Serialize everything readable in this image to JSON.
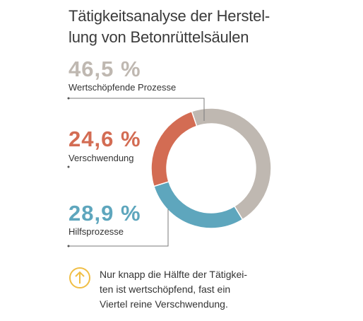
{
  "title_lines": [
    "Tätigkeitsanalyse der Herstel-",
    "lung von Betonrüttelsäulen"
  ],
  "chart_data": {
    "type": "pie",
    "style": "donut",
    "slices": [
      {
        "label": "Wertschöpfende Prozesse",
        "value": 46.5,
        "display": "46,5 %",
        "color": "#bfb8b1"
      },
      {
        "label": "Verschwendung",
        "value": 24.6,
        "display": "24,6 %",
        "color": "#d36c53"
      },
      {
        "label": "Hilfsprozesse",
        "value": 28.9,
        "display": "28,9 %",
        "color": "#5ea6bd"
      }
    ]
  },
  "note": {
    "icon": "arrow-up-circle-icon",
    "icon_color": "#f0be45",
    "lines": [
      "Nur knapp die Hälfte der Tätigkei-",
      "ten ist wertschöpfend, fast ein",
      "Viertel reine Verschwendung."
    ]
  }
}
